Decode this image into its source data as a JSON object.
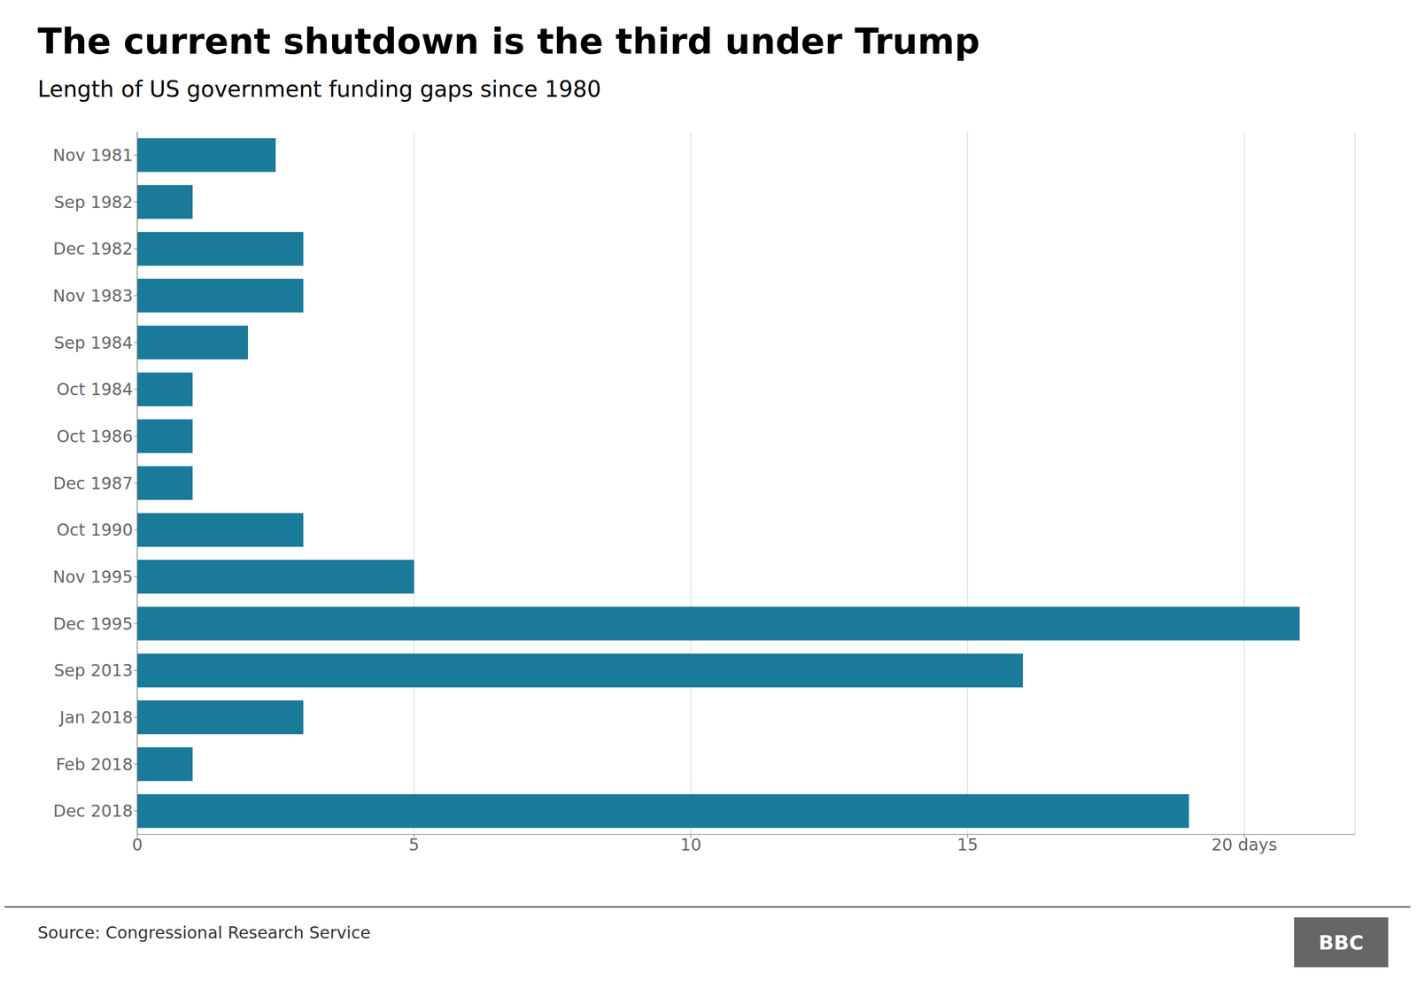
{
  "chart_data": {
    "type": "bar",
    "orientation": "horizontal",
    "title": "The current shutdown is the third under Trump",
    "subtitle": "Length of US government funding gaps since 1980",
    "source": "Source: Congressional Research Service",
    "annotations": [
      "BBC"
    ],
    "categories": [
      "Nov 1981",
      "Sep 1982",
      "Dec 1982",
      "Nov 1983",
      "Sep 1984",
      "Oct 1984",
      "Oct 1986",
      "Dec 1987",
      "Oct 1990",
      "Nov 1995",
      "Dec 1995",
      "Sep 2013",
      "Jan 2018",
      "Feb 2018",
      "Dec 2018"
    ],
    "values": [
      2.5,
      1.0,
      3.0,
      3.0,
      2.0,
      1.0,
      1.0,
      1.0,
      3.0,
      5.0,
      21.0,
      16.0,
      3.0,
      1.0,
      19.0
    ],
    "color": "#1a7a9a",
    "xlim": [
      0,
      22
    ],
    "xticks": [
      0,
      5,
      10,
      15,
      {
        "value": 20,
        "label": "20 days"
      }
    ],
    "grid": true
  }
}
